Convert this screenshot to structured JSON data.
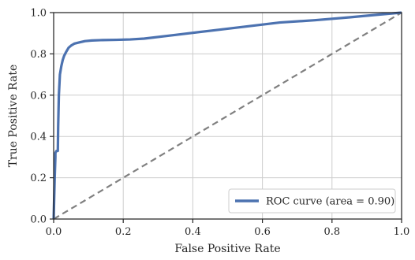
{
  "chart_data": {
    "type": "line",
    "xlabel": "False Positive Rate",
    "ylabel": "True Positive Rate",
    "xlim": [
      0.0,
      1.0
    ],
    "ylim": [
      0.0,
      1.0
    ],
    "x_ticks": [
      "0.0",
      "0.2",
      "0.4",
      "0.6",
      "0.8",
      "1.0"
    ],
    "y_ticks": [
      "0.0",
      "0.2",
      "0.4",
      "0.6",
      "0.8",
      "1.0"
    ],
    "grid": true,
    "legend_position": "lower-right",
    "series": [
      {
        "name": "ROC curve (area = 0.90)",
        "color": "#4c72b0",
        "style": "solid",
        "x": [
          0.0,
          0.003,
          0.005,
          0.005,
          0.008,
          0.012,
          0.013,
          0.015,
          0.018,
          0.022,
          0.026,
          0.03,
          0.036,
          0.043,
          0.05,
          0.06,
          0.075,
          0.09,
          0.11,
          0.14,
          0.18,
          0.22,
          0.26,
          0.35,
          0.45,
          0.55,
          0.65,
          0.75,
          0.85,
          0.92,
          1.0
        ],
        "y": [
          0.0,
          0.2,
          0.3,
          0.32,
          0.33,
          0.33,
          0.45,
          0.6,
          0.7,
          0.74,
          0.77,
          0.79,
          0.81,
          0.83,
          0.84,
          0.85,
          0.856,
          0.862,
          0.865,
          0.867,
          0.868,
          0.87,
          0.874,
          0.892,
          0.912,
          0.932,
          0.952,
          0.963,
          0.977,
          0.988,
          1.0
        ]
      },
      {
        "name": "",
        "color": "#808080",
        "style": "dashed",
        "x": [
          0.0,
          1.0
        ],
        "y": [
          0.0,
          1.0
        ]
      }
    ]
  }
}
